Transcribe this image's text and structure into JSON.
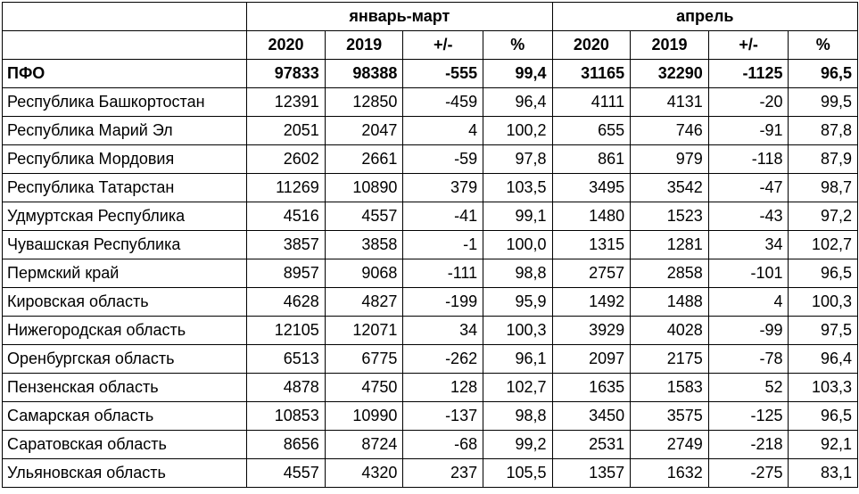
{
  "header": {
    "group1": "январь-март",
    "group2": "апрель",
    "subcols": [
      "2020",
      "2019",
      "+/-",
      "%",
      "2020",
      "2019",
      "+/-",
      "%"
    ]
  },
  "rows": [
    {
      "name": "ПФО",
      "cells": [
        "97833",
        "98388",
        "-555",
        "99,4",
        "31165",
        "32290",
        "-1125",
        "96,5"
      ]
    },
    {
      "name": "Республика Башкортостан",
      "cells": [
        "12391",
        "12850",
        "-459",
        "96,4",
        "4111",
        "4131",
        "-20",
        "99,5"
      ]
    },
    {
      "name": "Республика Марий Эл",
      "cells": [
        "2051",
        "2047",
        "4",
        "100,2",
        "655",
        "746",
        "-91",
        "87,8"
      ]
    },
    {
      "name": "Республика Мордовия",
      "cells": [
        "2602",
        "2661",
        "-59",
        "97,8",
        "861",
        "979",
        "-118",
        "87,9"
      ]
    },
    {
      "name": "Республика Татарстан",
      "cells": [
        "11269",
        "10890",
        "379",
        "103,5",
        "3495",
        "3542",
        "-47",
        "98,7"
      ]
    },
    {
      "name": "Удмуртская Республика",
      "cells": [
        "4516",
        "4557",
        "-41",
        "99,1",
        "1480",
        "1523",
        "-43",
        "97,2"
      ]
    },
    {
      "name": "Чувашская Республика",
      "cells": [
        "3857",
        "3858",
        "-1",
        "100,0",
        "1315",
        "1281",
        "34",
        "102,7"
      ]
    },
    {
      "name": "Пермский край",
      "cells": [
        "8957",
        "9068",
        "-111",
        "98,8",
        "2757",
        "2858",
        "-101",
        "96,5"
      ]
    },
    {
      "name": "Кировская область",
      "cells": [
        "4628",
        "4827",
        "-199",
        "95,9",
        "1492",
        "1488",
        "4",
        "100,3"
      ]
    },
    {
      "name": "Нижегородская область",
      "cells": [
        "12105",
        "12071",
        "34",
        "100,3",
        "3929",
        "4028",
        "-99",
        "97,5"
      ]
    },
    {
      "name": "Оренбургская область",
      "cells": [
        "6513",
        "6775",
        "-262",
        "96,1",
        "2097",
        "2175",
        "-78",
        "96,4"
      ]
    },
    {
      "name": "Пензенская область",
      "cells": [
        "4878",
        "4750",
        "128",
        "102,7",
        "1635",
        "1583",
        "52",
        "103,3"
      ]
    },
    {
      "name": "Самарская область",
      "cells": [
        "10853",
        "10990",
        "-137",
        "98,8",
        "3450",
        "3575",
        "-125",
        "96,5"
      ]
    },
    {
      "name": "Саратовская область",
      "cells": [
        "8656",
        "8724",
        "-68",
        "99,2",
        "2531",
        "2749",
        "-218",
        "92,1"
      ]
    },
    {
      "name": "Ульяновская область",
      "cells": [
        "4557",
        "4320",
        "237",
        "105,5",
        "1357",
        "1632",
        "-275",
        "83,1"
      ]
    }
  ]
}
